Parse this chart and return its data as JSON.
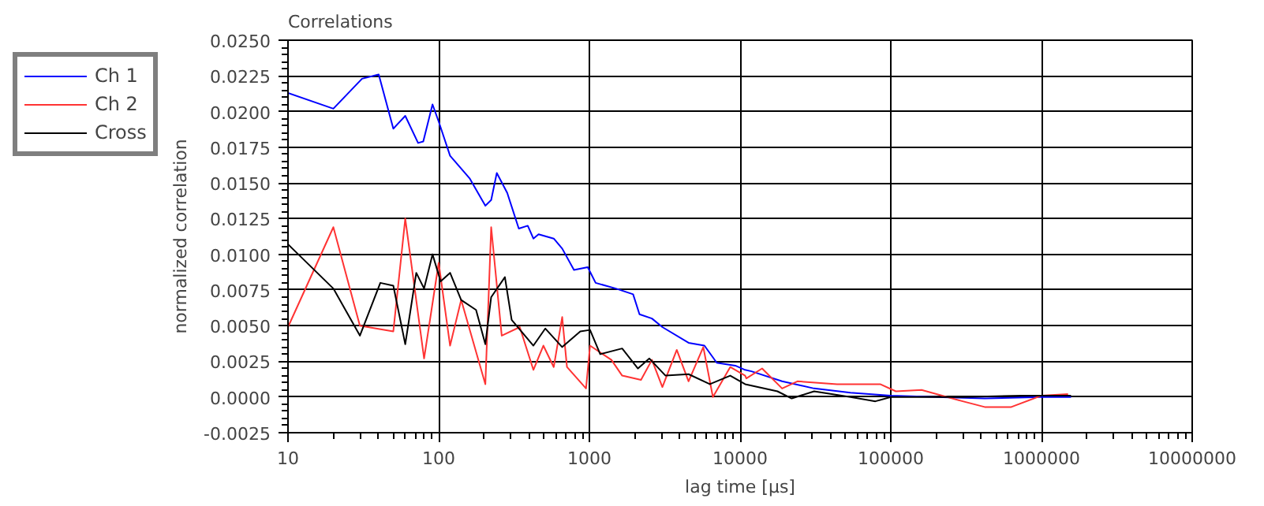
{
  "chart_data": {
    "type": "line",
    "title": "Correlations",
    "xlabel": "lag time [µs]",
    "ylabel": "normalized correlation",
    "log": "x",
    "grid": true,
    "legend": "top left",
    "marker": "none",
    "line_style": "solid",
    "xlim": [
      10,
      10000000
    ],
    "xticks": [
      10,
      100,
      1000,
      10000,
      100000,
      1000000,
      10000000
    ],
    "ylim": [
      -0.0025,
      0.025
    ],
    "yticks": [
      {
        "value": -0.0025,
        "label": "-0.0025"
      },
      {
        "value": 0,
        "label": "0.0000"
      },
      {
        "value": 0.0025,
        "label": "0.0025"
      },
      {
        "value": 0.005,
        "label": "0.0050"
      },
      {
        "value": 0.0075,
        "label": "0.0075"
      },
      {
        "value": 0.01,
        "label": "0.0100"
      },
      {
        "value": 0.0125,
        "label": "0.0125"
      },
      {
        "value": 0.015,
        "label": "0.0150"
      },
      {
        "value": 0.0175,
        "label": "0.0175"
      },
      {
        "value": 0.02,
        "label": "0.0200"
      },
      {
        "value": 0.0225,
        "label": "0.0225"
      },
      {
        "value": 0.025,
        "label": "0.0250"
      }
    ],
    "series": [
      {
        "name": "Ch 1",
        "color": "#0000ff",
        "x": [
          10,
          20,
          31,
          40,
          50,
          60,
          73,
          79,
          91,
          100,
          119,
          161,
          204,
          223,
          243,
          285,
          340,
          390,
          425,
          460,
          580,
          660,
          790,
          975,
          1100,
          1500,
          1950,
          2150,
          2600,
          3050,
          4550,
          5800,
          7000,
          9300,
          10800,
          11900,
          19000,
          31000,
          54000,
          100000,
          200000,
          420000,
          1000000,
          1570000
        ],
        "values": [
          0.0213,
          0.0202,
          0.0223,
          0.0226,
          0.0188,
          0.0197,
          0.0178,
          0.0179,
          0.0205,
          0.0193,
          0.0169,
          0.0153,
          0.0134,
          0.0138,
          0.0157,
          0.0143,
          0.0118,
          0.012,
          0.0111,
          0.0114,
          0.0111,
          0.0104,
          0.0089,
          0.0091,
          0.008,
          0.0076,
          0.0072,
          0.0058,
          0.0055,
          0.0049,
          0.0038,
          0.0036,
          0.0024,
          0.0022,
          0.0019,
          0.0018,
          0.0011,
          0.0006,
          0.0003,
          0.0001,
          0,
          -0.0001,
          0,
          0
        ]
      },
      {
        "name": "Ch 2",
        "color": "#ff3333",
        "x": [
          10,
          20,
          30,
          50,
          60,
          80,
          100,
          119,
          141,
          204,
          223,
          262,
          345,
          425,
          495,
          580,
          660,
          710,
          950,
          1010,
          1400,
          1650,
          2200,
          2600,
          3050,
          3800,
          4550,
          5700,
          6600,
          8600,
          10800,
          11000,
          14000,
          19000,
          24000,
          44000,
          85000,
          108000,
          160000,
          300000,
          420000,
          630000,
          1000000,
          1500000
        ],
        "values": [
          0.0049,
          0.0119,
          0.005,
          0.0046,
          0.0125,
          0.0027,
          0.0094,
          0.0036,
          0.0068,
          0.0009,
          0.0119,
          0.0043,
          0.0049,
          0.0019,
          0.0036,
          0.0021,
          0.0056,
          0.0021,
          0.0006,
          0.0036,
          0.0026,
          0.0015,
          0.0012,
          0.0026,
          0.0007,
          0.0033,
          0.0011,
          0.0035,
          0,
          0.0021,
          0.0015,
          0.0013,
          0.002,
          0.0006,
          0.0011,
          0.0009,
          0.0009,
          0.0004,
          0.0005,
          -0.0003,
          -0.0007,
          -0.0007,
          0.0001,
          0.0002
        ]
      },
      {
        "name": "Cross",
        "color": "#000000",
        "x": [
          10,
          20,
          30,
          41,
          50,
          60,
          71,
          80,
          91,
          103,
          119,
          141,
          177,
          204,
          223,
          275,
          305,
          425,
          510,
          660,
          870,
          1010,
          1180,
          1650,
          2100,
          2500,
          3200,
          4550,
          6300,
          8600,
          10800,
          11900,
          17700,
          22000,
          31000,
          54000,
          79000,
          100000,
          300000,
          740000,
          1570000
        ],
        "values": [
          0.0107,
          0.0076,
          0.0043,
          0.008,
          0.0078,
          0.0037,
          0.0087,
          0.0076,
          0.01,
          0.0081,
          0.0087,
          0.0068,
          0.0061,
          0.0037,
          0.007,
          0.0084,
          0.0054,
          0.0036,
          0.0048,
          0.0035,
          0.0046,
          0.0047,
          0.003,
          0.0034,
          0.002,
          0.0027,
          0.0015,
          0.0016,
          0.0009,
          0.0015,
          0.0009,
          0.0008,
          0.0004,
          -0.0001,
          0.0004,
          0,
          -0.0003,
          0,
          0,
          0.0001,
          0.0001
        ]
      }
    ]
  }
}
